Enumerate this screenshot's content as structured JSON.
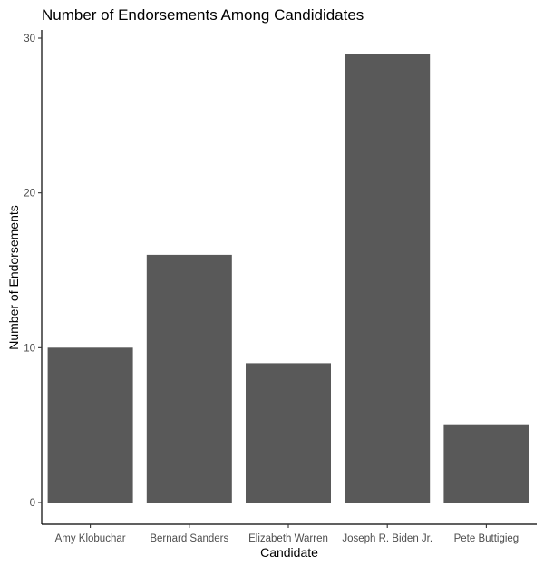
{
  "chart_data": {
    "type": "bar",
    "title": "Number of Endorsements Among Candididates",
    "xlabel": "Candidate",
    "ylabel": "Number of Endorsements",
    "categories": [
      "Amy Klobuchar",
      "Bernard Sanders",
      "Elizabeth Warren",
      "Joseph R. Biden Jr.",
      "Pete Buttigieg"
    ],
    "values": [
      10,
      16,
      9,
      29,
      5
    ],
    "ylim": [
      0,
      30
    ],
    "yticks": [
      0,
      10,
      20,
      30
    ],
    "grid": false,
    "legend": "none",
    "colors": {
      "bar": "#595959",
      "axis": "#000000",
      "tick_label": "#4d4d4d",
      "background": "#ffffff"
    }
  }
}
